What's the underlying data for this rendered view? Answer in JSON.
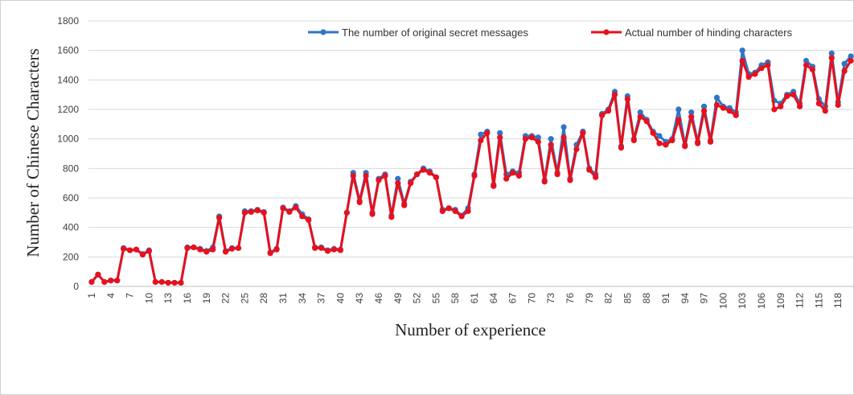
{
  "chart_data": {
    "type": "line",
    "y_label": "Number of Chinese Characters",
    "x_label": "Number of experience",
    "categories": [
      1,
      null,
      null,
      4,
      null,
      null,
      7,
      null,
      null,
      10,
      null,
      null,
      13,
      null,
      null,
      16,
      null,
      null,
      19,
      null,
      null,
      22,
      null,
      null,
      25,
      null,
      null,
      28,
      null,
      null,
      31,
      null,
      null,
      34,
      null,
      null,
      37,
      null,
      null,
      40,
      null,
      null,
      43,
      null,
      null,
      46,
      null,
      null,
      49,
      null,
      null,
      52,
      null,
      null,
      55,
      null,
      null,
      58,
      null,
      null,
      61,
      null,
      null,
      64,
      null,
      null,
      67,
      null,
      null,
      70,
      null,
      null,
      73,
      null,
      null,
      76,
      null,
      null,
      79,
      null,
      null,
      82,
      null,
      null,
      85,
      null,
      null,
      88,
      null,
      null,
      91,
      null,
      null,
      94,
      null,
      null,
      97,
      null,
      null,
      100,
      null,
      null,
      103,
      null,
      null,
      106,
      null,
      null,
      109,
      null,
      null,
      112,
      null,
      null,
      115,
      null,
      null,
      118,
      null,
      null
    ],
    "series": [
      {
        "name": "The number of original secret messages",
        "color": "#2e75c6",
        "values": [
          30,
          80,
          30,
          40,
          40,
          260,
          245,
          250,
          220,
          245,
          30,
          30,
          25,
          25,
          25,
          265,
          265,
          255,
          240,
          265,
          475,
          240,
          260,
          260,
          510,
          510,
          520,
          505,
          230,
          255,
          535,
          510,
          545,
          490,
          455,
          265,
          265,
          245,
          255,
          250,
          500,
          770,
          580,
          770,
          500,
          730,
          760,
          480,
          730,
          560,
          710,
          760,
          800,
          780,
          740,
          520,
          530,
          520,
          480,
          530,
          760,
          1030,
          1050,
          690,
          1040,
          760,
          780,
          770,
          1020,
          1020,
          1010,
          720,
          1000,
          770,
          1080,
          730,
          960,
          1050,
          800,
          760,
          1170,
          1200,
          1320,
          950,
          1290,
          1000,
          1180,
          1130,
          1050,
          1020,
          980,
          1000,
          1200,
          960,
          1180,
          980,
          1220,
          990,
          1280,
          1220,
          1210,
          1180,
          1600,
          1440,
          1450,
          1500,
          1520,
          1260,
          1240,
          1300,
          1320,
          1240,
          1530,
          1490,
          1270,
          1220,
          1580,
          1250,
          1510,
          1560
        ]
      },
      {
        "name": "Actual number of hinding characters",
        "color": "#e8101c",
        "values": [
          30,
          80,
          30,
          40,
          40,
          255,
          245,
          250,
          215,
          240,
          30,
          30,
          25,
          25,
          25,
          260,
          265,
          250,
          235,
          250,
          465,
          235,
          255,
          260,
          500,
          505,
          515,
          500,
          225,
          250,
          530,
          505,
          535,
          475,
          450,
          260,
          260,
          240,
          250,
          245,
          500,
          750,
          570,
          750,
          490,
          720,
          750,
          470,
          700,
          550,
          700,
          760,
          790,
          770,
          740,
          510,
          530,
          510,
          475,
          510,
          750,
          990,
          1040,
          680,
          1010,
          730,
          770,
          750,
          1000,
          1010,
          980,
          710,
          960,
          760,
          1010,
          720,
          930,
          1040,
          790,
          740,
          1160,
          1190,
          1300,
          940,
          1270,
          990,
          1150,
          1120,
          1040,
          970,
          960,
          990,
          1130,
          950,
          1150,
          970,
          1190,
          980,
          1230,
          1210,
          1190,
          1160,
          1530,
          1420,
          1440,
          1480,
          1500,
          1200,
          1220,
          1290,
          1300,
          1220,
          1500,
          1470,
          1240,
          1190,
          1550,
          1230,
          1460,
          1530
        ]
      }
    ],
    "ylim": [
      0,
      1800
    ],
    "yticks": [
      0,
      200,
      400,
      600,
      800,
      1000,
      1200,
      1400,
      1600,
      1800
    ],
    "grid": true,
    "legend": "top"
  }
}
